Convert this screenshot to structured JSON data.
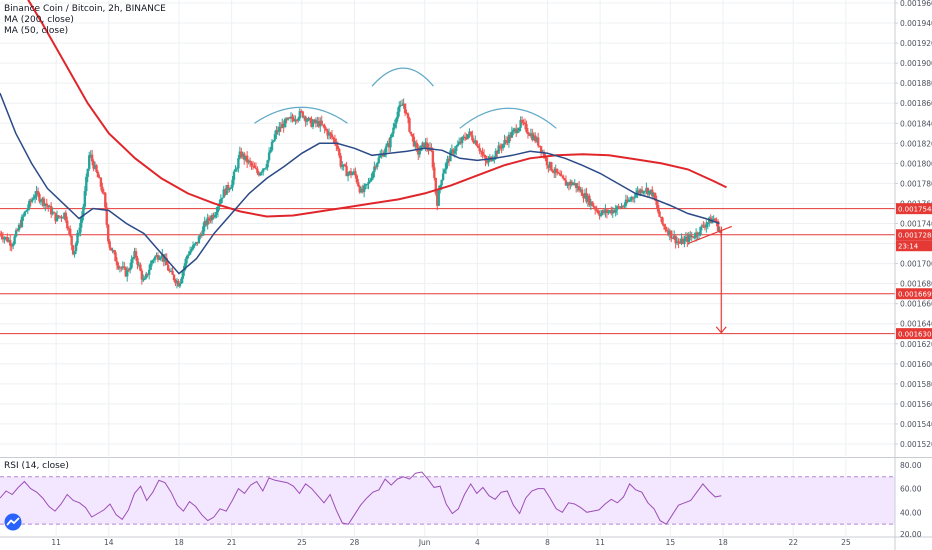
{
  "header": {
    "symbol_line": "Binance Coin / Bitcoin, 2h, BINANCE",
    "ma200_label": "MA (200, close)",
    "ma50_label": "MA (50, close)",
    "rsi_label": "RSI (14, close)"
  },
  "colors": {
    "up": "#26a69a",
    "down": "#ef5350",
    "ma200": "#e0262a",
    "ma50": "#2b4a87",
    "rsi_line": "#9c4fb5",
    "rsi_band": "#f3e6ff",
    "hline": "#e53935",
    "label_bg": "#e53935",
    "pattern_arc": "#5fa8c8"
  },
  "chart_data": [
    {
      "type": "candlestick",
      "title": "Binance Coin / Bitcoin, 2h, BINANCE",
      "y_axis_ticks": [
        "0.0019600",
        "0.0019400",
        "0.0019200",
        "0.0019000",
        "0.0018800",
        "0.0018600",
        "0.0018400",
        "0.0018200",
        "0.0018000",
        "0.0017800",
        "0.0017600",
        "0.0017400",
        "0.0017200",
        "0.0017000",
        "0.0016800",
        "0.0016600",
        "0.0016400",
        "0.0016200",
        "0.0016000",
        "0.0015800",
        "0.0015600",
        "0.0015400",
        "0.0015200"
      ],
      "y_tick_values": [
        0.00196,
        0.00194,
        0.00192,
        0.0019,
        0.00188,
        0.00186,
        0.00184,
        0.00182,
        0.0018,
        0.00178,
        0.00176,
        0.00174,
        0.00172,
        0.0017,
        0.00168,
        0.00166,
        0.00164,
        0.00162,
        0.0016,
        0.00158,
        0.00156,
        0.00154,
        0.00152
      ],
      "ylim": [
        0.001508,
        0.001963
      ],
      "x_axis_ticks": [
        "11",
        "14",
        "18",
        "21",
        "25",
        "28",
        "Jun",
        "4",
        "8",
        "11",
        "15",
        "18",
        "22",
        "25"
      ],
      "x_tick_days": [
        11,
        14,
        18,
        21,
        25,
        28,
        32,
        35,
        39,
        42,
        46,
        49,
        53,
        56
      ],
      "xlim_days": [
        7.8,
        58.8
      ],
      "price_levels": [
        {
          "label": "0.0017548",
          "value": 0.0017548
        },
        {
          "label": "0.0017288",
          "value": 0.0017288
        },
        {
          "label": "0.0016699",
          "value": 0.0016699
        },
        {
          "label": "0.0016301",
          "value": 0.0016301
        }
      ],
      "countdown_label": "23:14",
      "close_path": [
        [
          7.8,
          0.00173
        ],
        [
          8.5,
          0.00172
        ],
        [
          9.2,
          0.00175
        ],
        [
          9.8,
          0.00177
        ],
        [
          10.4,
          0.00176
        ],
        [
          11.0,
          0.001745
        ],
        [
          11.5,
          0.00175
        ],
        [
          12.0,
          0.00171
        ],
        [
          12.5,
          0.00175
        ],
        [
          12.9,
          0.00181
        ],
        [
          13.3,
          0.00179
        ],
        [
          13.7,
          0.00177
        ],
        [
          14.0,
          0.00172
        ],
        [
          14.5,
          0.0017
        ],
        [
          15.0,
          0.00169
        ],
        [
          15.5,
          0.00171
        ],
        [
          16.0,
          0.00168
        ],
        [
          16.5,
          0.001705
        ],
        [
          17.0,
          0.00171
        ],
        [
          17.5,
          0.00169
        ],
        [
          18.0,
          0.00168
        ],
        [
          18.5,
          0.00171
        ],
        [
          19.0,
          0.00172
        ],
        [
          19.5,
          0.00174
        ],
        [
          20.0,
          0.00175
        ],
        [
          20.5,
          0.00177
        ],
        [
          21.0,
          0.00178
        ],
        [
          21.5,
          0.00181
        ],
        [
          22.0,
          0.0018
        ],
        [
          22.5,
          0.00179
        ],
        [
          23.0,
          0.0018
        ],
        [
          23.5,
          0.00183
        ],
        [
          24.0,
          0.00184
        ],
        [
          24.5,
          0.001845
        ],
        [
          25.0,
          0.00185
        ],
        [
          25.5,
          0.00184
        ],
        [
          26.0,
          0.00184
        ],
        [
          26.5,
          0.00183
        ],
        [
          27.0,
          0.00182
        ],
        [
          27.2,
          0.0018
        ],
        [
          27.6,
          0.00179
        ],
        [
          28.0,
          0.00179
        ],
        [
          28.4,
          0.00177
        ],
        [
          28.8,
          0.00178
        ],
        [
          29.2,
          0.0018
        ],
        [
          29.6,
          0.00181
        ],
        [
          30.0,
          0.00182
        ],
        [
          30.4,
          0.00185
        ],
        [
          30.8,
          0.00186
        ],
        [
          31.2,
          0.00183
        ],
        [
          31.6,
          0.00181
        ],
        [
          32.0,
          0.00182
        ],
        [
          32.4,
          0.00181
        ],
        [
          32.7,
          0.00176
        ],
        [
          33.0,
          0.00179
        ],
        [
          33.5,
          0.00181
        ],
        [
          34.0,
          0.00182
        ],
        [
          34.5,
          0.00183
        ],
        [
          35.0,
          0.00182
        ],
        [
          35.5,
          0.0018
        ],
        [
          36.0,
          0.00181
        ],
        [
          36.5,
          0.00182
        ],
        [
          37.0,
          0.00183
        ],
        [
          37.5,
          0.00184
        ],
        [
          38.0,
          0.00183
        ],
        [
          38.5,
          0.00182
        ],
        [
          39.0,
          0.0018
        ],
        [
          39.5,
          0.00179
        ],
        [
          40.0,
          0.00178
        ],
        [
          40.5,
          0.00178
        ],
        [
          41.0,
          0.00177
        ],
        [
          41.5,
          0.00176
        ],
        [
          42.0,
          0.00175
        ],
        [
          42.5,
          0.001752
        ],
        [
          43.0,
          0.001755
        ],
        [
          43.5,
          0.00176
        ],
        [
          44.0,
          0.00177
        ],
        [
          44.5,
          0.001775
        ],
        [
          45.0,
          0.00177
        ],
        [
          45.5,
          0.00174
        ],
        [
          46.0,
          0.00173
        ],
        [
          46.5,
          0.00172
        ],
        [
          47.0,
          0.001725
        ],
        [
          47.5,
          0.00173
        ],
        [
          48.0,
          0.00174
        ],
        [
          48.5,
          0.001745
        ],
        [
          48.9,
          0.001729
        ]
      ],
      "series": [
        {
          "name": "MA (200, close)",
          "points": [
            [
              9.0,
              0.001975
            ],
            [
              10.2,
              0.00194
            ],
            [
              11.5,
              0.0019
            ],
            [
              12.8,
              0.00186
            ],
            [
              14.0,
              0.00183
            ],
            [
              15.5,
              0.001805
            ],
            [
              17.0,
              0.001785
            ],
            [
              18.5,
              0.00177
            ],
            [
              20.0,
              0.00176
            ],
            [
              21.5,
              0.001752
            ],
            [
              23.0,
              0.001747
            ],
            [
              24.5,
              0.001748
            ],
            [
              26.0,
              0.001752
            ],
            [
              27.5,
              0.001756
            ],
            [
              29.0,
              0.00176
            ],
            [
              30.5,
              0.001764
            ],
            [
              32.0,
              0.00177
            ],
            [
              33.5,
              0.001778
            ],
            [
              35.0,
              0.001788
            ],
            [
              36.5,
              0.001798
            ],
            [
              38.0,
              0.001805
            ],
            [
              39.5,
              0.001808
            ],
            [
              41.0,
              0.001809
            ],
            [
              42.5,
              0.001808
            ],
            [
              44.0,
              0.001804
            ],
            [
              45.5,
              0.0018
            ],
            [
              47.0,
              0.001794
            ],
            [
              48.5,
              0.001782
            ],
            [
              49.2,
              0.001776
            ]
          ]
        },
        {
          "name": "MA (50, close)",
          "points": [
            [
              7.8,
              0.00187
            ],
            [
              8.7,
              0.00183
            ],
            [
              9.6,
              0.0018
            ],
            [
              10.5,
              0.001775
            ],
            [
              11.4,
              0.00176
            ],
            [
              12.3,
              0.001745
            ],
            [
              13.1,
              0.001755
            ],
            [
              14.0,
              0.001753
            ],
            [
              15.0,
              0.00174
            ],
            [
              16.0,
              0.00173
            ],
            [
              17.0,
              0.00171
            ],
            [
              18.0,
              0.00169
            ],
            [
              19.0,
              0.001705
            ],
            [
              20.0,
              0.00173
            ],
            [
              21.0,
              0.00175
            ],
            [
              22.0,
              0.00177
            ],
            [
              23.0,
              0.001785
            ],
            [
              24.0,
              0.001797
            ],
            [
              25.0,
              0.00181
            ],
            [
              26.0,
              0.00182
            ],
            [
              27.0,
              0.00182
            ],
            [
              28.0,
              0.001815
            ],
            [
              29.0,
              0.001808
            ],
            [
              30.0,
              0.00181
            ],
            [
              31.0,
              0.001812
            ],
            [
              32.0,
              0.001815
            ],
            [
              33.0,
              0.001813
            ],
            [
              34.0,
              0.001805
            ],
            [
              35.0,
              0.001803
            ],
            [
              36.0,
              0.001805
            ],
            [
              37.0,
              0.001808
            ],
            [
              38.0,
              0.001812
            ],
            [
              39.0,
              0.00181
            ],
            [
              40.0,
              0.001805
            ],
            [
              41.0,
              0.001798
            ],
            [
              42.0,
              0.00179
            ],
            [
              43.0,
              0.00178
            ],
            [
              44.0,
              0.00177
            ],
            [
              45.0,
              0.001765
            ],
            [
              46.0,
              0.001758
            ],
            [
              47.0,
              0.00175
            ],
            [
              48.0,
              0.001745
            ],
            [
              48.8,
              0.00174
            ]
          ]
        }
      ],
      "pattern_arcs": [
        {
          "start": [
            22.3,
            0.00184
          ],
          "peak": [
            25.0,
            0.001856
          ],
          "end": [
            27.6,
            0.00184
          ]
        },
        {
          "start": [
            29.0,
            0.001877
          ],
          "peak": [
            30.8,
            0.001895
          ],
          "end": [
            32.5,
            0.001877
          ]
        },
        {
          "start": [
            34.0,
            0.001835
          ],
          "peak": [
            36.8,
            0.001855
          ],
          "end": [
            39.5,
            0.001835
          ]
        }
      ],
      "trendline": {
        "start": [
          47.0,
          0.00172
        ],
        "end": [
          49.5,
          0.001737
        ]
      },
      "target_arrow": {
        "from": [
          48.9,
          0.001737
        ],
        "to": [
          48.9,
          0.001631
        ]
      }
    },
    {
      "type": "line",
      "title": "RSI (14, close)",
      "y_axis_ticks": [
        "80.00",
        "60.00",
        "40.00",
        "20.00"
      ],
      "y_tick_values": [
        80,
        60,
        40,
        20
      ],
      "ylim": [
        20,
        85
      ],
      "band": [
        30,
        70
      ],
      "shared_x_days": [
        7.8,
        58.8
      ],
      "values": [
        52,
        58,
        55,
        61,
        66,
        60,
        57,
        52,
        45,
        41,
        47,
        55,
        50,
        48,
        44,
        36,
        39,
        42,
        47,
        38,
        34,
        42,
        56,
        62,
        50,
        57,
        67,
        65,
        57,
        46,
        41,
        49,
        45,
        38,
        33,
        36,
        43,
        41,
        50,
        60,
        56,
        63,
        66,
        58,
        69,
        67,
        66,
        65,
        62,
        56,
        64,
        60,
        54,
        48,
        55,
        42,
        31,
        30,
        38,
        46,
        52,
        57,
        59,
        68,
        63,
        68,
        70,
        68,
        73,
        74,
        68,
        61,
        62,
        47,
        39,
        43,
        55,
        64,
        56,
        61,
        54,
        51,
        57,
        58,
        46,
        39,
        52,
        58,
        60,
        60,
        52,
        43,
        40,
        48,
        47,
        44,
        40,
        41,
        42,
        47,
        51,
        48,
        53,
        64,
        59,
        57,
        48,
        43,
        33,
        30,
        38,
        46,
        48,
        50,
        57,
        64,
        58,
        53,
        54
      ]
    }
  ]
}
